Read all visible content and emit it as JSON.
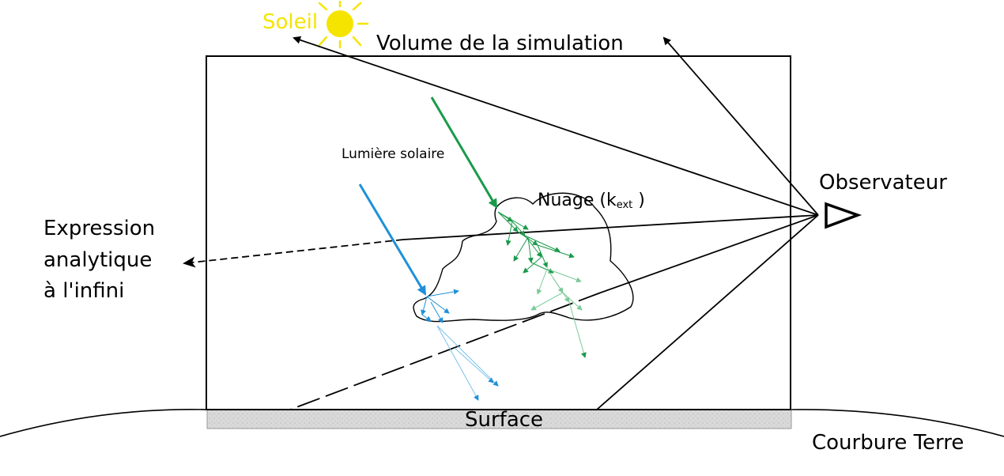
{
  "labels": {
    "sun": "Soleil",
    "volume": "Volume de la simulation",
    "sunlight": "Lumière solaire",
    "cloud_main": "Nuage (k",
    "cloud_sub": "ext",
    "cloud_close": " )",
    "observer": "Observateur",
    "expression_line1": "Expression",
    "expression_line2": "analytique",
    "expression_line3": "à l'infini",
    "surface": "Surface",
    "earth_curvature": "Courbure Terre"
  },
  "colors": {
    "sun": "#f5e400",
    "ray_green": "#1a9a4a",
    "ray_green_light": "#7cc99a",
    "ray_blue": "#1e90d8",
    "ray_blue_light": "#7cc2ec",
    "outline": "#000000",
    "surface_fill": "#d9d9d9"
  }
}
